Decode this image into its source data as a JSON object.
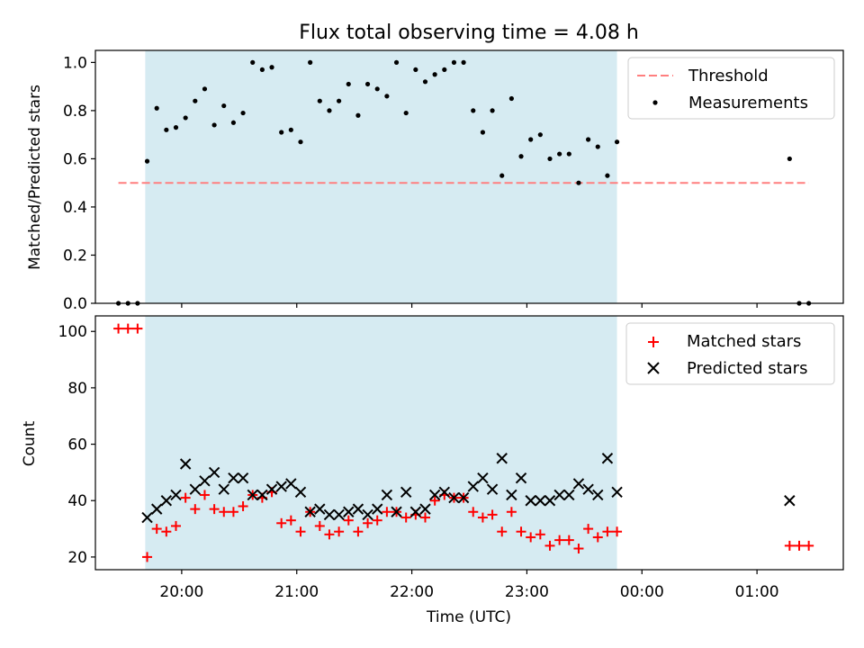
{
  "figure_title": "Flux total observing time = 4.08 h",
  "x_axis_label": "Time (UTC)",
  "x_ticks": [
    "20:00",
    "21:00",
    "22:00",
    "23:00",
    "00:00",
    "01:00"
  ],
  "colors": {
    "threshold": "#ff7f7f",
    "measurement": "#000000",
    "matched": "#ff0000",
    "predicted": "#000000",
    "span": "#add8e6"
  },
  "chart_data": [
    {
      "type": "scatter",
      "ylabel": "Matched/Predicted stars",
      "xlabel": "",
      "xlim": [
        "19:15",
        "01:45"
      ],
      "ylim": [
        0,
        1.05
      ],
      "y_ticks": [
        "0.0",
        "0.2",
        "0.4",
        "0.6",
        "0.8",
        "1.0"
      ],
      "highlight_span": [
        "19:41",
        "23:47"
      ],
      "threshold": {
        "name": "Threshold",
        "y": 0.5,
        "x_start": "19:27",
        "x_end": "01:27"
      },
      "legend": [
        "Threshold",
        "Measurements"
      ],
      "legend_position": "upper right",
      "series": [
        {
          "name": "Measurements",
          "points": [
            [
              "19:27",
              0.0
            ],
            [
              "19:32",
              0.0
            ],
            [
              "19:37",
              0.0
            ],
            [
              "19:42",
              0.59
            ],
            [
              "19:47",
              0.81
            ],
            [
              "19:52",
              0.72
            ],
            [
              "19:57",
              0.73
            ],
            [
              "20:02",
              0.77
            ],
            [
              "20:07",
              0.84
            ],
            [
              "20:12",
              0.89
            ],
            [
              "20:17",
              0.74
            ],
            [
              "20:22",
              0.82
            ],
            [
              "20:27",
              0.75
            ],
            [
              "20:32",
              0.79
            ],
            [
              "20:37",
              1.0
            ],
            [
              "20:42",
              0.97
            ],
            [
              "20:47",
              0.98
            ],
            [
              "20:52",
              0.71
            ],
            [
              "20:57",
              0.72
            ],
            [
              "21:02",
              0.67
            ],
            [
              "21:07",
              1.0
            ],
            [
              "21:12",
              0.84
            ],
            [
              "21:17",
              0.8
            ],
            [
              "21:22",
              0.84
            ],
            [
              "21:27",
              0.91
            ],
            [
              "21:32",
              0.78
            ],
            [
              "21:37",
              0.91
            ],
            [
              "21:42",
              0.89
            ],
            [
              "21:47",
              0.86
            ],
            [
              "21:52",
              1.0
            ],
            [
              "21:57",
              0.79
            ],
            [
              "22:02",
              0.97
            ],
            [
              "22:07",
              0.92
            ],
            [
              "22:12",
              0.95
            ],
            [
              "22:17",
              0.97
            ],
            [
              "22:22",
              1.0
            ],
            [
              "22:27",
              1.0
            ],
            [
              "22:32",
              0.8
            ],
            [
              "22:37",
              0.71
            ],
            [
              "22:42",
              0.8
            ],
            [
              "22:47",
              0.53
            ],
            [
              "22:52",
              0.85
            ],
            [
              "22:57",
              0.61
            ],
            [
              "23:02",
              0.68
            ],
            [
              "23:07",
              0.7
            ],
            [
              "23:12",
              0.6
            ],
            [
              "23:17",
              0.62
            ],
            [
              "23:22",
              0.62
            ],
            [
              "23:27",
              0.5
            ],
            [
              "23:32",
              0.68
            ],
            [
              "23:37",
              0.65
            ],
            [
              "23:42",
              0.53
            ],
            [
              "23:47",
              0.67
            ],
            [
              "01:17",
              0.6
            ],
            [
              "01:22",
              0.0
            ],
            [
              "01:27",
              0.0
            ]
          ]
        }
      ]
    },
    {
      "type": "scatter",
      "ylabel": "Count",
      "xlabel": "Time (UTC)",
      "xlim": [
        "19:15",
        "01:45"
      ],
      "ylim": [
        15.5,
        105.5
      ],
      "y_ticks": [
        "20",
        "40",
        "60",
        "80",
        "100"
      ],
      "highlight_span": [
        "19:41",
        "23:47"
      ],
      "legend": [
        "Matched stars",
        "Predicted stars"
      ],
      "legend_position": "upper right",
      "series": [
        {
          "name": "Matched stars",
          "marker": "plus",
          "points": [
            [
              "19:27",
              101
            ],
            [
              "19:32",
              101
            ],
            [
              "19:37",
              101
            ],
            [
              "19:42",
              20
            ],
            [
              "19:47",
              30
            ],
            [
              "19:52",
              29
            ],
            [
              "19:57",
              31
            ],
            [
              "20:02",
              41
            ],
            [
              "20:07",
              37
            ],
            [
              "20:12",
              42
            ],
            [
              "20:17",
              37
            ],
            [
              "20:22",
              36
            ],
            [
              "20:27",
              36
            ],
            [
              "20:32",
              38
            ],
            [
              "20:37",
              42
            ],
            [
              "20:42",
              41
            ],
            [
              "20:47",
              43
            ],
            [
              "20:52",
              32
            ],
            [
              "20:57",
              33
            ],
            [
              "21:02",
              29
            ],
            [
              "21:07",
              36
            ],
            [
              "21:12",
              31
            ],
            [
              "21:17",
              28
            ],
            [
              "21:22",
              29
            ],
            [
              "21:27",
              33
            ],
            [
              "21:32",
              29
            ],
            [
              "21:37",
              32
            ],
            [
              "21:42",
              33
            ],
            [
              "21:47",
              36
            ],
            [
              "21:52",
              36
            ],
            [
              "21:57",
              34
            ],
            [
              "22:02",
              35
            ],
            [
              "22:07",
              34
            ],
            [
              "22:12",
              40
            ],
            [
              "22:17",
              42
            ],
            [
              "22:22",
              41
            ],
            [
              "22:27",
              41
            ],
            [
              "22:32",
              36
            ],
            [
              "22:37",
              34
            ],
            [
              "22:42",
              35
            ],
            [
              "22:47",
              29
            ],
            [
              "22:52",
              36
            ],
            [
              "22:57",
              29
            ],
            [
              "23:02",
              27
            ],
            [
              "23:07",
              28
            ],
            [
              "23:12",
              24
            ],
            [
              "23:17",
              26
            ],
            [
              "23:22",
              26
            ],
            [
              "23:27",
              23
            ],
            [
              "23:32",
              30
            ],
            [
              "23:37",
              27
            ],
            [
              "23:42",
              29
            ],
            [
              "23:47",
              29
            ],
            [
              "01:17",
              24
            ],
            [
              "01:22",
              24
            ],
            [
              "01:27",
              24
            ]
          ]
        },
        {
          "name": "Predicted stars",
          "marker": "x",
          "points": [
            [
              "19:42",
              34
            ],
            [
              "19:47",
              37
            ],
            [
              "19:52",
              40
            ],
            [
              "19:57",
              42
            ],
            [
              "20:02",
              53
            ],
            [
              "20:07",
              44
            ],
            [
              "20:12",
              47
            ],
            [
              "20:17",
              50
            ],
            [
              "20:22",
              44
            ],
            [
              "20:27",
              48
            ],
            [
              "20:32",
              48
            ],
            [
              "20:37",
              42
            ],
            [
              "20:42",
              42
            ],
            [
              "20:47",
              44
            ],
            [
              "20:52",
              45
            ],
            [
              "20:57",
              46
            ],
            [
              "21:02",
              43
            ],
            [
              "21:07",
              36
            ],
            [
              "21:12",
              37
            ],
            [
              "21:17",
              35
            ],
            [
              "21:22",
              35
            ],
            [
              "21:27",
              36
            ],
            [
              "21:32",
              37
            ],
            [
              "21:37",
              35
            ],
            [
              "21:42",
              37
            ],
            [
              "21:47",
              42
            ],
            [
              "21:52",
              36
            ],
            [
              "21:57",
              43
            ],
            [
              "22:02",
              36
            ],
            [
              "22:07",
              37
            ],
            [
              "22:12",
              42
            ],
            [
              "22:17",
              43
            ],
            [
              "22:22",
              41
            ],
            [
              "22:27",
              41
            ],
            [
              "22:32",
              45
            ],
            [
              "22:37",
              48
            ],
            [
              "22:42",
              44
            ],
            [
              "22:47",
              55
            ],
            [
              "22:52",
              42
            ],
            [
              "22:57",
              48
            ],
            [
              "23:02",
              40
            ],
            [
              "23:07",
              40
            ],
            [
              "23:12",
              40
            ],
            [
              "23:17",
              42
            ],
            [
              "23:22",
              42
            ],
            [
              "23:27",
              46
            ],
            [
              "23:32",
              44
            ],
            [
              "23:37",
              42
            ],
            [
              "23:42",
              55
            ],
            [
              "23:47",
              43
            ],
            [
              "01:17",
              40
            ]
          ]
        }
      ]
    }
  ]
}
